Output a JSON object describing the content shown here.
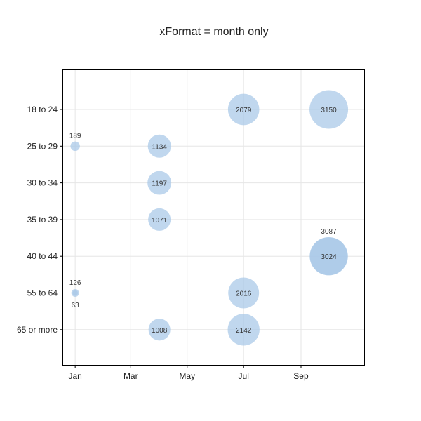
{
  "chart_data": {
    "type": "scatter",
    "title": "xFormat = month only",
    "xlabel": "",
    "ylabel": "",
    "x_domain": [
      "2019-12-19",
      "2020-11-09"
    ],
    "x_ticks": [
      {
        "date": "2020-01-01",
        "label": "Jan"
      },
      {
        "date": "2020-03-01",
        "label": "Mar"
      },
      {
        "date": "2020-05-01",
        "label": "May"
      },
      {
        "date": "2020-07-01",
        "label": "Jul"
      },
      {
        "date": "2020-09-01",
        "label": "Sep"
      }
    ],
    "categories": [
      "18 to 24",
      "25 to 29",
      "30 to 34",
      "35 to 39",
      "40 to 44",
      "55 to 64",
      "65 or more"
    ],
    "grid": true,
    "bubble_color": "#a8c8e8",
    "bubble_color_dark": "#7fb0de",
    "points": [
      {
        "x": "2020-07-01",
        "y": "18 to 24",
        "value": 2079
      },
      {
        "x": "2020-10-01",
        "y": "18 to 24",
        "value": 3150
      },
      {
        "x": "2020-01-01",
        "y": "25 to 29",
        "value": 189
      },
      {
        "x": "2020-04-01",
        "y": "25 to 29",
        "value": 1134
      },
      {
        "x": "2020-04-01",
        "y": "30 to 34",
        "value": 1197
      },
      {
        "x": "2020-04-01",
        "y": "35 to 39",
        "value": 1071
      },
      {
        "x": "2020-10-01",
        "y": "40 to 44",
        "value": 3024
      },
      {
        "x": "2020-10-01",
        "y": "40 to 44",
        "value": 3087
      },
      {
        "x": "2020-01-01",
        "y": "55 to 64",
        "value": 63
      },
      {
        "x": "2020-01-01",
        "y": "55 to 64",
        "value": 126
      },
      {
        "x": "2020-07-01",
        "y": "55 to 64",
        "value": 2016
      },
      {
        "x": "2020-04-01",
        "y": "65 or more",
        "value": 1008
      },
      {
        "x": "2020-07-01",
        "y": "65 or more",
        "value": 2142
      }
    ]
  }
}
